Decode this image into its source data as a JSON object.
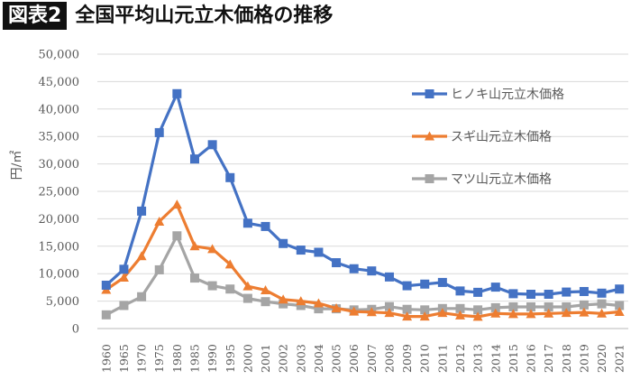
{
  "header": {
    "badge": "図表2",
    "title": "全国平均山元立木価格の推移"
  },
  "chart_data": {
    "type": "line",
    "title": "全国平均山元立木価格の推移",
    "xlabel": "",
    "ylabel": "円/㎡",
    "ylim": [
      0,
      50000
    ],
    "yticks": [
      0,
      5000,
      10000,
      15000,
      20000,
      25000,
      30000,
      35000,
      40000,
      45000,
      50000
    ],
    "ytick_labels": [
      "0",
      "5,000",
      "10,000",
      "15,000",
      "20,000",
      "25,000",
      "30,000",
      "35,000",
      "40,000",
      "45,000",
      "50,000"
    ],
    "grid": true,
    "legend_position": "top-right",
    "categories": [
      "1960",
      "1965",
      "1970",
      "1975",
      "1980",
      "1985",
      "1990",
      "1995",
      "2000",
      "2001",
      "2002",
      "2003",
      "2004",
      "2005",
      "2006",
      "2007",
      "2008",
      "2009",
      "2010",
      "2011",
      "2012",
      "2013",
      "2014",
      "2015",
      "2016",
      "2017",
      "2018",
      "2019",
      "2020",
      "2021"
    ],
    "series": [
      {
        "name": "ヒノキ山元立木価格",
        "color": "#4472C4",
        "marker": "square",
        "values": [
          7900,
          10800,
          21400,
          35700,
          42800,
          30900,
          33500,
          27500,
          19200,
          18600,
          15500,
          14300,
          13900,
          12000,
          10900,
          10500,
          9400,
          7800,
          8100,
          8400,
          6850,
          6600,
          7550,
          6350,
          6250,
          6250,
          6650,
          6750,
          6450,
          7200
        ]
      },
      {
        "name": "スギ山元立木価格",
        "color": "#ED7D31",
        "marker": "triangle",
        "values": [
          7070,
          9300,
          13200,
          19500,
          22600,
          15000,
          14500,
          11700,
          7700,
          7000,
          5300,
          5000,
          4600,
          3700,
          3100,
          3000,
          2850,
          2200,
          2200,
          2850,
          2400,
          2150,
          2750,
          2650,
          2650,
          2750,
          2850,
          2950,
          2750,
          3050
        ]
      },
      {
        "name": "マツ山元立木価格",
        "color": "#A5A5A5",
        "marker": "square",
        "values": [
          2500,
          4200,
          5800,
          10700,
          16900,
          9200,
          7800,
          7200,
          5500,
          4900,
          4500,
          4200,
          3600,
          3600,
          3400,
          3500,
          4000,
          3500,
          3400,
          3650,
          3650,
          3400,
          3800,
          3950,
          3950,
          3950,
          3950,
          4300,
          4500,
          4200
        ]
      }
    ]
  }
}
